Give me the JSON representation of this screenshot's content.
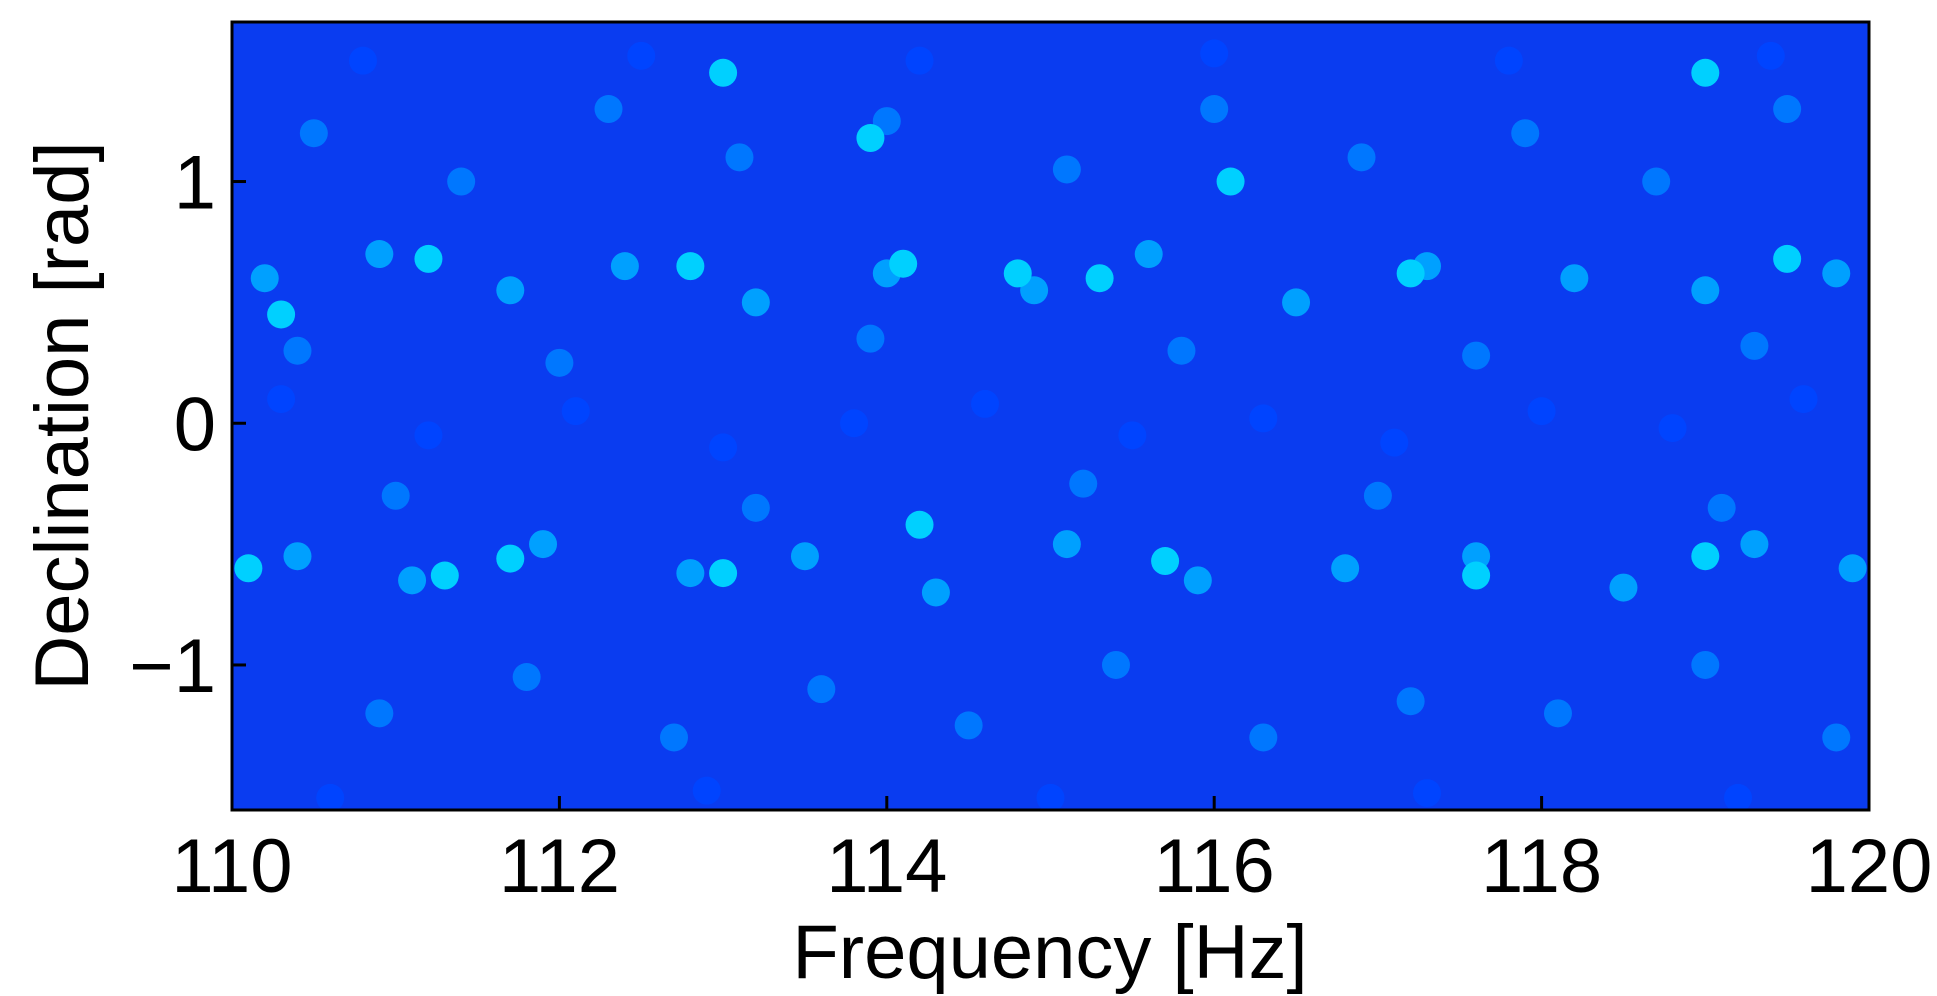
{
  "chart_data": {
    "type": "scatter",
    "xlabel": "Frequency [Hz]",
    "ylabel": "Declination [rad]",
    "xlim": [
      110,
      120
    ],
    "ylim": [
      -1.6,
      1.66
    ],
    "xticks": [
      110,
      112,
      114,
      116,
      118,
      120
    ],
    "yticks": [
      {
        "value": -1,
        "label": "−1"
      },
      0,
      1
    ],
    "series": [
      {
        "color": "#0044ff",
        "x": [
          110.3,
          111.2,
          112.1,
          113.0,
          113.8,
          114.6,
          115.5,
          116.3,
          117.1,
          118.0,
          118.8,
          119.6,
          110.8,
          112.5,
          114.2,
          116.0,
          117.8,
          119.4,
          110.6,
          112.9,
          115.0,
          117.3,
          119.2
        ],
        "values": [
          0.1,
          -0.05,
          0.05,
          -0.1,
          0.0,
          0.08,
          -0.05,
          0.02,
          -0.08,
          0.05,
          -0.02,
          0.1,
          1.5,
          1.52,
          1.5,
          1.53,
          1.5,
          1.52,
          -1.55,
          -1.52,
          -1.55,
          -1.53,
          -1.55
        ]
      },
      {
        "color": "#0077ff",
        "x": [
          110.5,
          111.4,
          112.3,
          113.1,
          114.0,
          115.1,
          116.0,
          116.9,
          117.9,
          118.7,
          119.5,
          110.9,
          111.8,
          112.7,
          113.6,
          114.5,
          115.4,
          116.3,
          117.2,
          118.1,
          119.0,
          119.8,
          110.4,
          112.0,
          113.9,
          115.8,
          117.6,
          119.3,
          111.0,
          113.2,
          115.2,
          117.0,
          119.1
        ],
        "values": [
          1.2,
          1.0,
          1.3,
          1.1,
          1.25,
          1.05,
          1.3,
          1.1,
          1.2,
          1.0,
          1.3,
          -1.2,
          -1.05,
          -1.3,
          -1.1,
          -1.25,
          -1.0,
          -1.3,
          -1.15,
          -1.2,
          -1.0,
          -1.3,
          0.3,
          0.25,
          0.35,
          0.3,
          0.28,
          0.32,
          -0.3,
          -0.35,
          -0.25,
          -0.3,
          -0.35
        ]
      },
      {
        "color": "#00a0ff",
        "x": [
          110.2,
          110.9,
          111.7,
          112.4,
          113.2,
          114.0,
          114.9,
          115.6,
          116.5,
          117.3,
          118.2,
          119.0,
          119.8,
          110.4,
          111.1,
          111.9,
          112.8,
          113.5,
          114.3,
          115.1,
          115.9,
          116.8,
          117.6,
          118.5,
          119.3,
          119.9
        ],
        "values": [
          0.6,
          0.7,
          0.55,
          0.65,
          0.5,
          0.62,
          0.55,
          0.7,
          0.5,
          0.65,
          0.6,
          0.55,
          0.62,
          -0.55,
          -0.65,
          -0.5,
          -0.62,
          -0.55,
          -0.7,
          -0.5,
          -0.65,
          -0.6,
          -0.55,
          -0.68,
          -0.5,
          -0.6
        ]
      },
      {
        "color": "#00d0ff",
        "x": [
          110.3,
          111.2,
          112.8,
          114.1,
          114.8,
          115.3,
          117.2,
          119.5,
          110.1,
          111.3,
          111.7,
          113.0,
          114.2,
          115.7,
          117.6,
          119.0,
          113.0,
          113.9,
          116.1,
          119.0
        ],
        "values": [
          0.45,
          0.68,
          0.65,
          0.66,
          0.62,
          0.6,
          0.62,
          0.68,
          -0.6,
          -0.63,
          -0.56,
          -0.62,
          -0.42,
          -0.57,
          -0.63,
          -0.55,
          1.45,
          1.18,
          1.0,
          1.45
        ]
      }
    ]
  }
}
